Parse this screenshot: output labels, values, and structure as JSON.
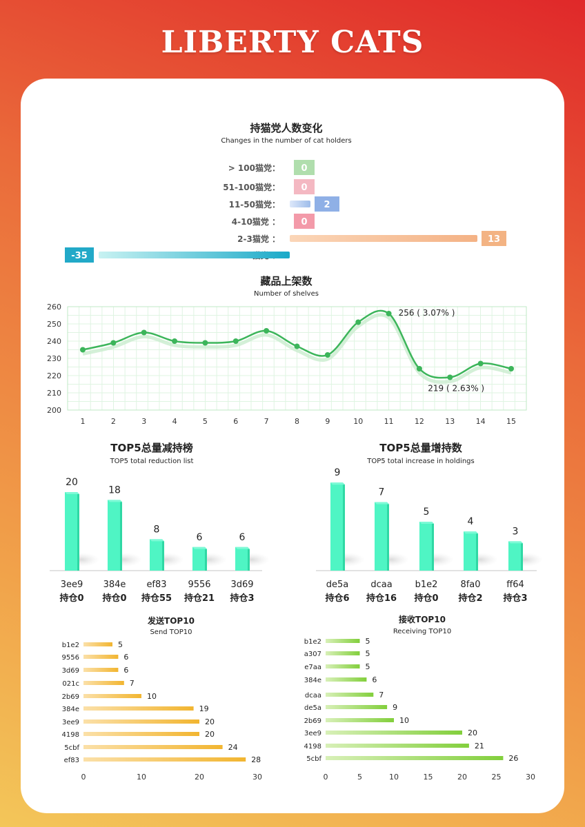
{
  "header": {
    "title": "LIBERTY CATS"
  },
  "chart_data": [
    {
      "type": "bar",
      "title": "持猫党人数变化",
      "subtitle": "Changes in the number of cat holders",
      "categories": [
        "> 100猫党：",
        "51-100猫党：",
        "11-50猫党：",
        "4-10猫党 ：",
        "2-3猫党 ：",
        "一猫党 ："
      ],
      "values": [
        0,
        0,
        2,
        0,
        13,
        -35
      ],
      "colors": [
        "#8fd08a",
        "#f09aa8",
        "#8fb0e6",
        "#ee6f84",
        "#f3b383",
        "#22a9c8"
      ]
    },
    {
      "type": "line",
      "title": "藏品上架数",
      "subtitle": "Number of shelves",
      "x": [
        1,
        2,
        3,
        4,
        5,
        6,
        7,
        8,
        9,
        10,
        11,
        12,
        13,
        14,
        15
      ],
      "y": [
        235,
        239,
        245,
        240,
        239,
        240,
        246,
        237,
        232,
        251,
        256,
        224,
        219,
        227,
        224
      ],
      "ylim": [
        200,
        260
      ],
      "yticks": [
        200,
        210,
        220,
        230,
        240,
        250,
        260
      ],
      "grid": true,
      "annotations": [
        {
          "text": "256 ( 3.07% )"
        },
        {
          "text": "219 ( 2.63% )"
        }
      ],
      "color": "#3cb55a"
    },
    {
      "type": "bar",
      "title": "TOP5总量减持榜",
      "subtitle": "TOP5 total reduction list",
      "categories": [
        "3ee9",
        "384e",
        "ef83",
        "9556",
        "3d69"
      ],
      "sublabels": [
        "持仓0",
        "持仓0",
        "持仓55",
        "持仓21",
        "持仓3"
      ],
      "values": [
        20,
        18,
        8,
        6,
        6
      ],
      "color": "#4ff5c4"
    },
    {
      "type": "bar",
      "title": "TOP5总量增持数",
      "subtitle": "TOP5 total increase in holdings",
      "categories": [
        "de5a",
        "dcaa",
        "b1e2",
        "8fa0",
        "ff64"
      ],
      "sublabels": [
        "持仓6",
        "持仓16",
        "持仓0",
        "持仓2",
        "持仓3"
      ],
      "values": [
        9,
        7,
        5,
        4,
        3
      ],
      "color": "#4ff5c4"
    },
    {
      "type": "bar",
      "orientation": "horizontal",
      "title": "发送TOP10",
      "subtitle": "Send TOP10",
      "categories": [
        "b1e2",
        "9556",
        "3d69",
        "021c",
        "2b69",
        "384e",
        "3ee9",
        "4198",
        "5cbf",
        "ef83"
      ],
      "values": [
        5,
        6,
        6,
        7,
        10,
        19,
        20,
        20,
        24,
        28
      ],
      "xlim": [
        0,
        30
      ],
      "xticks": [
        0,
        10,
        20,
        30
      ],
      "color": "#f3b730"
    },
    {
      "type": "bar",
      "orientation": "horizontal",
      "title": "接收TOP10",
      "subtitle": "Receiving TOP10",
      "categories": [
        "b1e2",
        "a307",
        "e7aa",
        "384e",
        "dcaa",
        "de5a",
        "2b69",
        "3ee9",
        "4198",
        "5cbf"
      ],
      "values": [
        5,
        5,
        5,
        6,
        7,
        9,
        10,
        20,
        21,
        26
      ],
      "xlim": [
        0,
        30
      ],
      "xticks": [
        0,
        5,
        10,
        15,
        20,
        25,
        30
      ],
      "color": "#8fd444"
    }
  ]
}
